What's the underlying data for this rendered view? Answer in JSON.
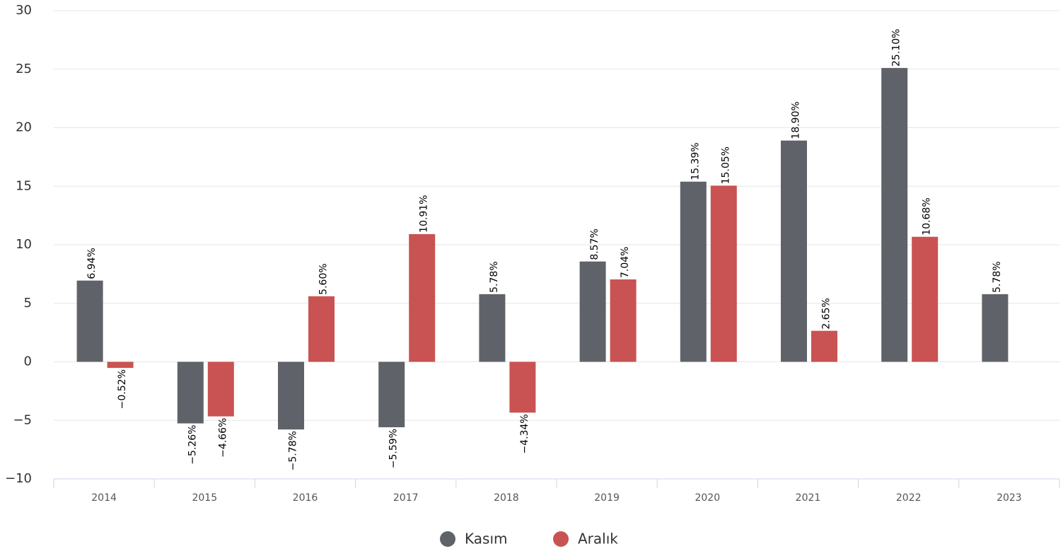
{
  "chart_data": {
    "type": "bar",
    "categories": [
      "2014",
      "2015",
      "2016",
      "2017",
      "2018",
      "2019",
      "2020",
      "2021",
      "2022",
      "2023"
    ],
    "series": [
      {
        "name": "Kasım",
        "color": "#5f6369",
        "values": [
          6.94,
          -5.26,
          -5.78,
          -5.59,
          5.78,
          8.57,
          15.39,
          18.9,
          25.1,
          5.78
        ],
        "value_labels": [
          "6.94%",
          "−5.26%",
          "−5.78%",
          "−5.59%",
          "5.78%",
          "8.57%",
          "15.39%",
          "18.90%",
          "25.10%",
          "5.78%"
        ]
      },
      {
        "name": "Aralık",
        "color": "#c95352",
        "values": [
          -0.52,
          -4.66,
          5.6,
          10.91,
          -4.34,
          7.04,
          15.05,
          2.65,
          10.68,
          null
        ],
        "value_labels": [
          "−0.52%",
          "−4.66%",
          "5.60%",
          "10.91%",
          "−4.34%",
          "7.04%",
          "15.05%",
          "2.65%",
          "10.68%",
          null
        ]
      }
    ],
    "ylim": [
      -10,
      30
    ],
    "yticks": [
      {
        "value": -10,
        "label": "−10"
      },
      {
        "value": -5,
        "label": "−5"
      },
      0,
      5,
      10,
      15,
      20,
      25,
      30
    ],
    "grid": true,
    "legend": "bottom"
  }
}
